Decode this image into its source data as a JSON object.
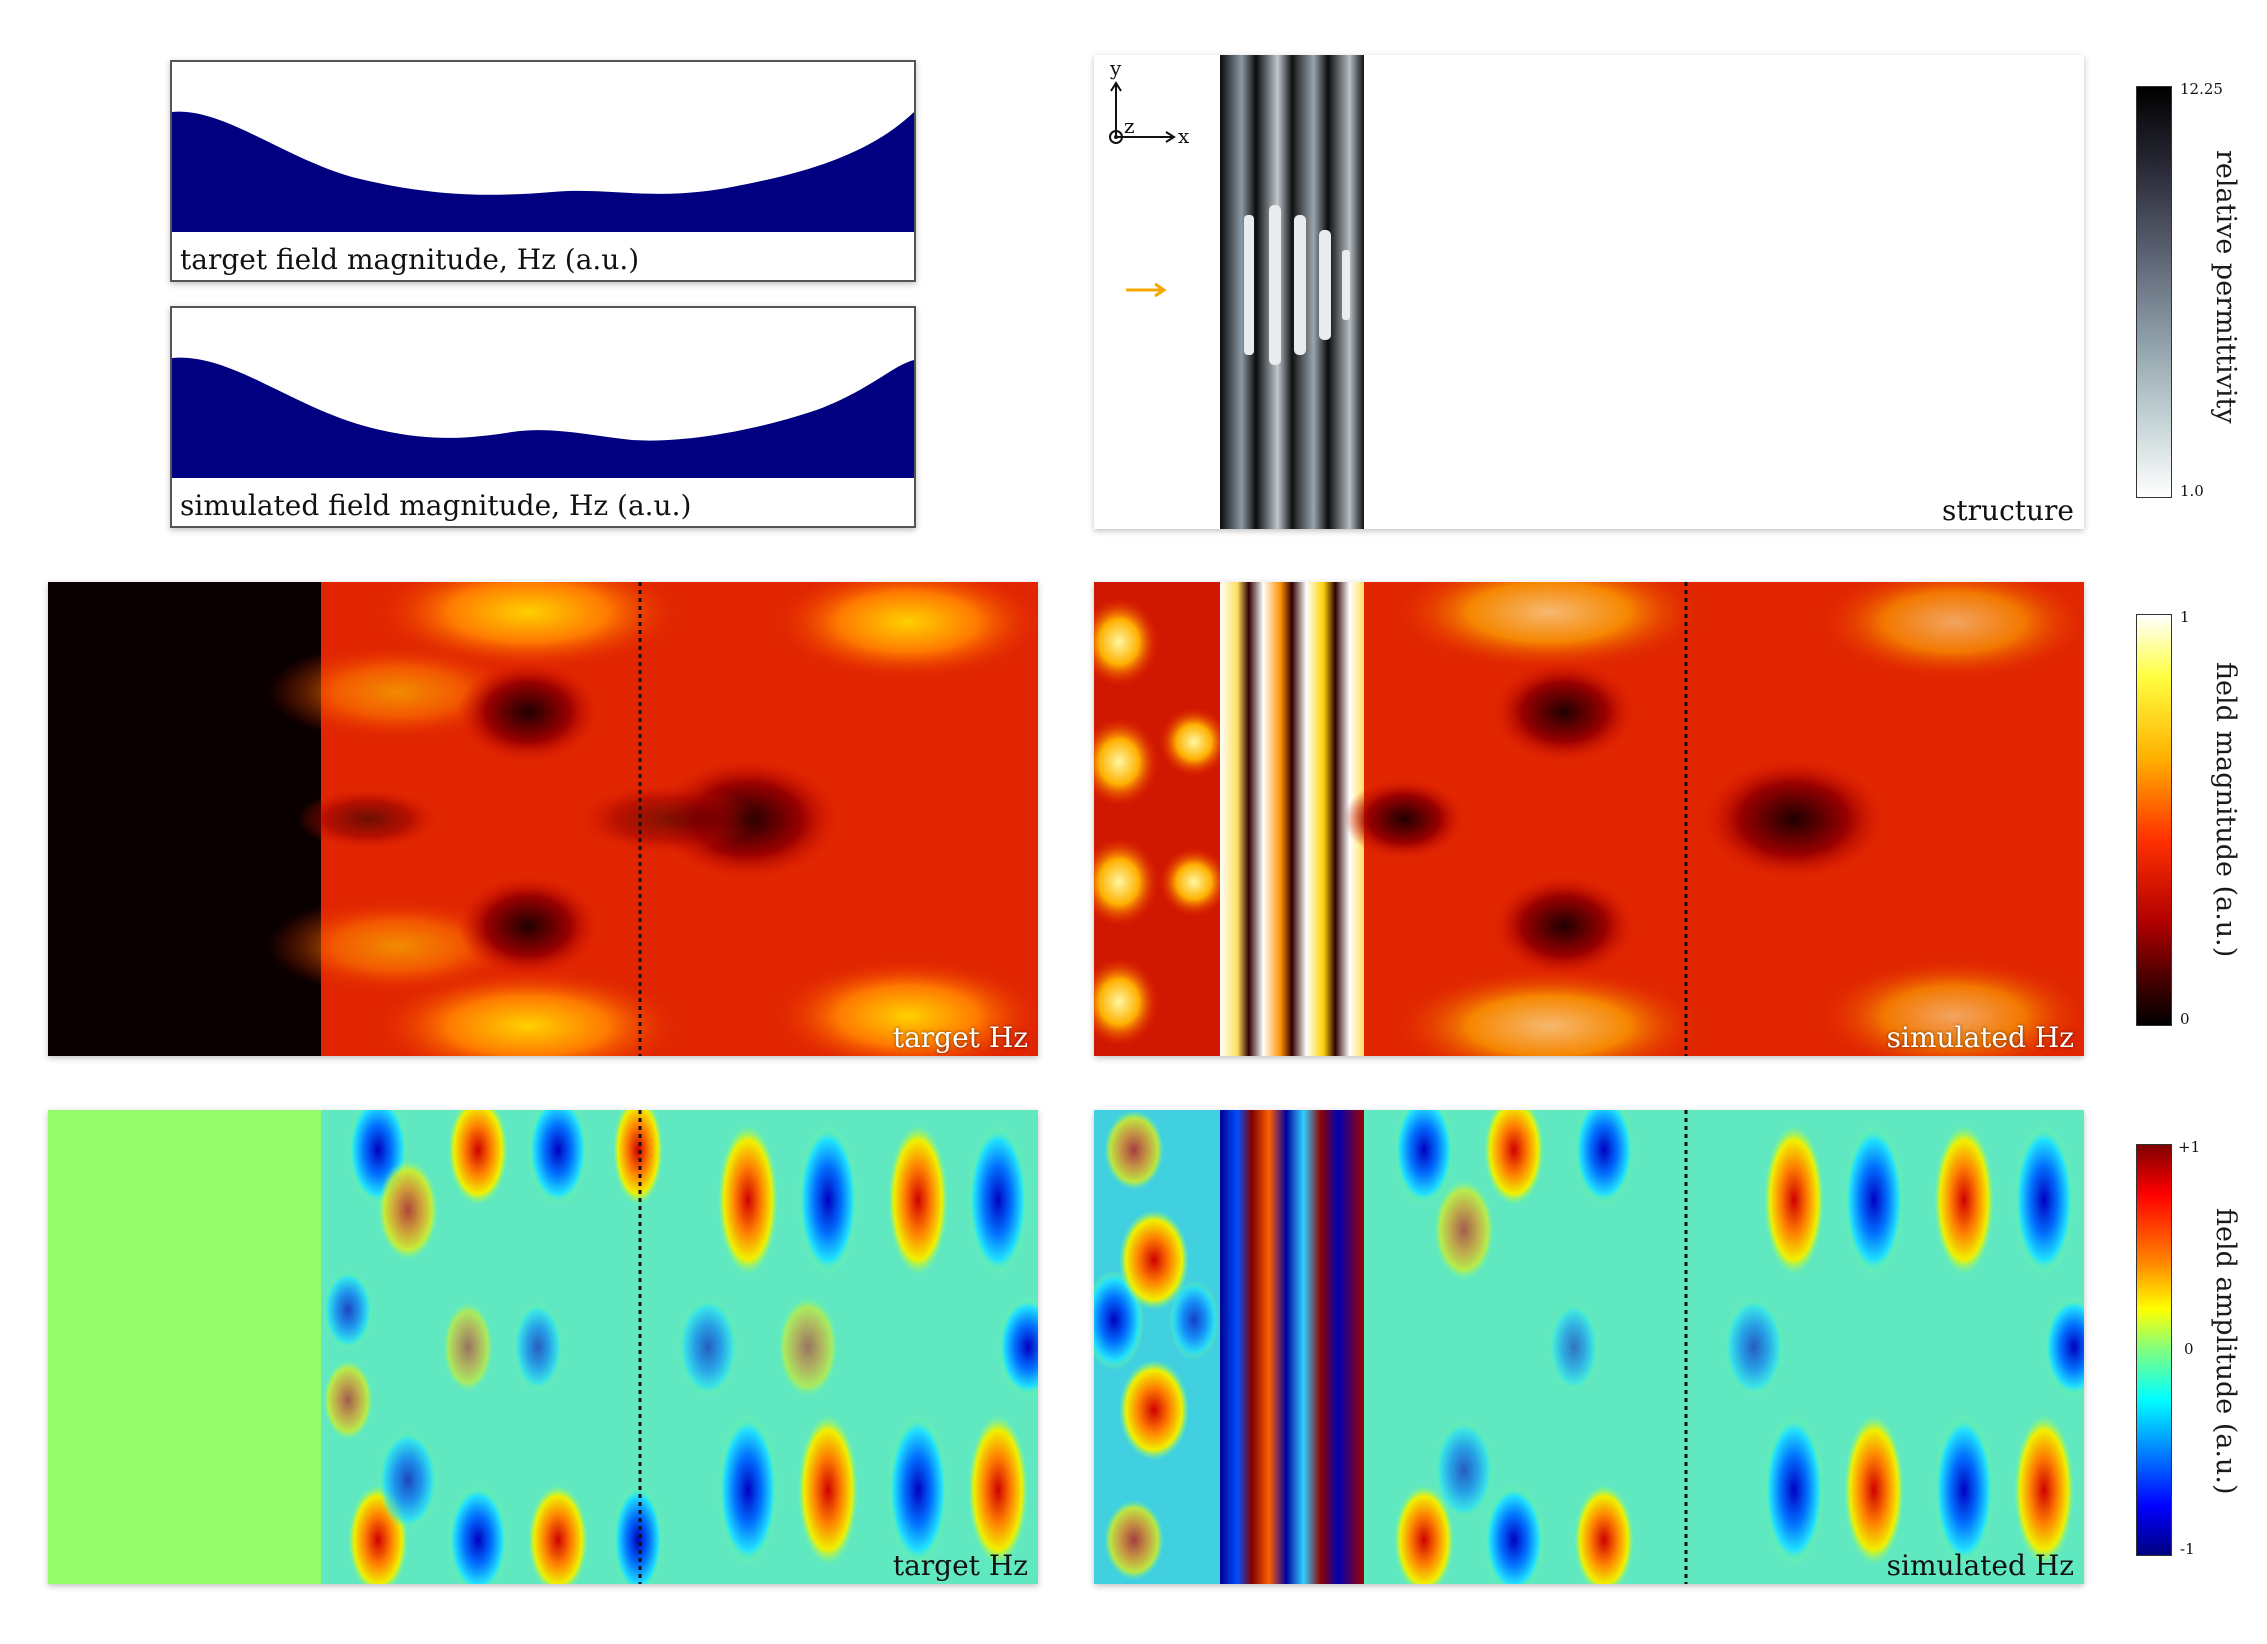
{
  "profiles": {
    "target_caption": "target field magnitude, Hz (a.u.)",
    "simulated_caption": "simulated field magnitude, Hz (a.u.)",
    "fill_color": "#000080"
  },
  "structure": {
    "label": "structure",
    "axis_x": "x",
    "axis_y": "y",
    "axis_z": "z",
    "source_arrow_color": "#f5a800"
  },
  "magnitude_row": {
    "target_label": "target Hz",
    "simulated_label": "simulated Hz"
  },
  "amplitude_row": {
    "target_label": "target Hz",
    "simulated_label": "simulated Hz"
  },
  "colorbars": {
    "permittivity": {
      "title": "relative permittivity",
      "max": "12.25",
      "min": "1.0",
      "colormap": "bone"
    },
    "magnitude": {
      "title": "field magnitude (a.u.)",
      "max": "1",
      "min": "0",
      "colormap": "hot"
    },
    "amplitude": {
      "title": "field amplitude (a.u.)",
      "max": "+1",
      "mid": "0",
      "min": "-1",
      "colormap": "jet"
    }
  }
}
